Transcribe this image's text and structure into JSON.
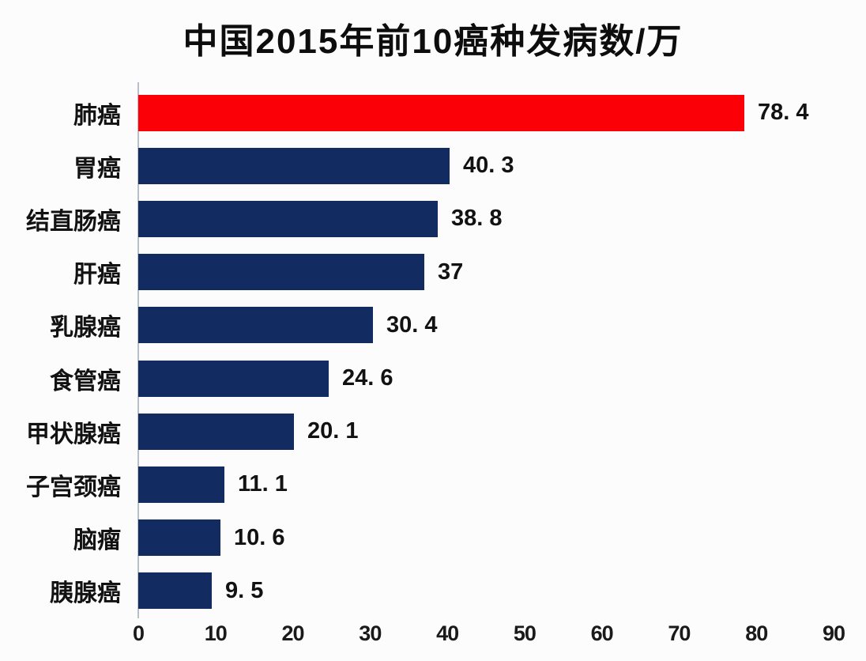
{
  "chart_data": {
    "type": "bar",
    "orientation": "horizontal",
    "title": "中国2015年前10癌种发病数/万",
    "categories": [
      "肺癌",
      "胃癌",
      "结直肠癌",
      "肝癌",
      "乳腺癌",
      "食管癌",
      "甲状腺癌",
      "子宫颈癌",
      "脑瘤",
      "胰腺癌"
    ],
    "values": [
      78.4,
      40.3,
      38.8,
      37,
      30.4,
      24.6,
      20.1,
      11.1,
      10.6,
      9.5
    ],
    "value_labels": [
      "78. 4",
      "40. 3",
      "38. 8",
      "37",
      "30. 4",
      "24. 6",
      "20. 1",
      "11. 1",
      "10. 6",
      "9. 5"
    ],
    "xlabel": "",
    "ylabel": "",
    "xlim": [
      0,
      90
    ],
    "x_ticks": [
      0,
      10,
      20,
      30,
      40,
      50,
      60,
      70,
      80,
      90
    ],
    "grid": false,
    "legend": false,
    "highlight_index": 0,
    "colors": {
      "highlight_bar": "#fb0006",
      "default_bar": "#122b60",
      "axis_line": "#b9bfc7",
      "text": "#121212",
      "background": "#fcfcfc"
    }
  }
}
